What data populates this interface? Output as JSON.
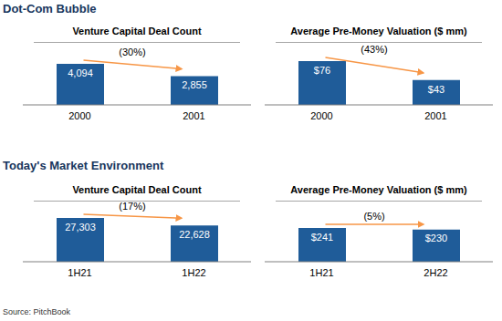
{
  "chart_data": [
    {
      "type": "bar",
      "title": "Venture Capital Deal Count",
      "categories": [
        "2000",
        "2001"
      ],
      "values": [
        4094,
        2855
      ],
      "value_labels": [
        "4,094",
        "2,855"
      ],
      "data_labels": true,
      "tick_labels": "x",
      "color": "#1f5c99",
      "annotation": "(30%)"
    },
    {
      "type": "bar",
      "title": "Average Pre-Money Valuation ($ mm)",
      "categories": [
        "2000",
        "2001"
      ],
      "values": [
        76,
        43
      ],
      "value_labels": [
        "$76",
        "$43"
      ],
      "data_labels": true,
      "tick_labels": "x",
      "color": "#1f5c99",
      "annotation": "(43%)"
    },
    {
      "type": "bar",
      "title": "Venture Capital Deal Count",
      "categories": [
        "1H21",
        "1H22"
      ],
      "values": [
        27303,
        22628
      ],
      "value_labels": [
        "27,303",
        "22,628"
      ],
      "data_labels": true,
      "tick_labels": "x",
      "color": "#1f5c99",
      "annotation": "(17%)"
    },
    {
      "type": "bar",
      "title": "Average Pre-Money Valuation ($ mm)",
      "categories": [
        "1H21",
        "2H22"
      ],
      "values": [
        241,
        230
      ],
      "value_labels": [
        "$241",
        "$230"
      ],
      "data_labels": true,
      "tick_labels": "x",
      "color": "#1f5c99",
      "annotation": "(5%)"
    }
  ],
  "sections": [
    "Dot-Com Bubble",
    "Today's Market Environment"
  ],
  "source": "Source: PitchBook"
}
